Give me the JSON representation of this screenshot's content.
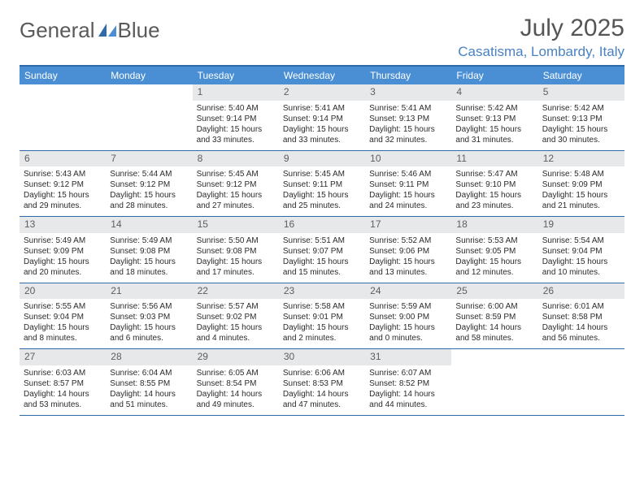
{
  "brand": {
    "name_a": "General",
    "name_b": "Blue"
  },
  "colors": {
    "brand_blue": "#2f6bab",
    "header_blue": "#4a8fd4",
    "text": "#333333",
    "muted": "#5a5a5a",
    "daynum_bg": "#e6e8ea",
    "location": "#4a82c3"
  },
  "title": "July 2025",
  "location": "Casatisma, Lombardy, Italy",
  "weekdays": [
    "Sunday",
    "Monday",
    "Tuesday",
    "Wednesday",
    "Thursday",
    "Friday",
    "Saturday"
  ],
  "weeks": [
    [
      null,
      null,
      {
        "n": "1",
        "sr": "5:40 AM",
        "ss": "9:14 PM",
        "d": "15 hours and 33 minutes."
      },
      {
        "n": "2",
        "sr": "5:41 AM",
        "ss": "9:14 PM",
        "d": "15 hours and 33 minutes."
      },
      {
        "n": "3",
        "sr": "5:41 AM",
        "ss": "9:13 PM",
        "d": "15 hours and 32 minutes."
      },
      {
        "n": "4",
        "sr": "5:42 AM",
        "ss": "9:13 PM",
        "d": "15 hours and 31 minutes."
      },
      {
        "n": "5",
        "sr": "5:42 AM",
        "ss": "9:13 PM",
        "d": "15 hours and 30 minutes."
      }
    ],
    [
      {
        "n": "6",
        "sr": "5:43 AM",
        "ss": "9:12 PM",
        "d": "15 hours and 29 minutes."
      },
      {
        "n": "7",
        "sr": "5:44 AM",
        "ss": "9:12 PM",
        "d": "15 hours and 28 minutes."
      },
      {
        "n": "8",
        "sr": "5:45 AM",
        "ss": "9:12 PM",
        "d": "15 hours and 27 minutes."
      },
      {
        "n": "9",
        "sr": "5:45 AM",
        "ss": "9:11 PM",
        "d": "15 hours and 25 minutes."
      },
      {
        "n": "10",
        "sr": "5:46 AM",
        "ss": "9:11 PM",
        "d": "15 hours and 24 minutes."
      },
      {
        "n": "11",
        "sr": "5:47 AM",
        "ss": "9:10 PM",
        "d": "15 hours and 23 minutes."
      },
      {
        "n": "12",
        "sr": "5:48 AM",
        "ss": "9:09 PM",
        "d": "15 hours and 21 minutes."
      }
    ],
    [
      {
        "n": "13",
        "sr": "5:49 AM",
        "ss": "9:09 PM",
        "d": "15 hours and 20 minutes."
      },
      {
        "n": "14",
        "sr": "5:49 AM",
        "ss": "9:08 PM",
        "d": "15 hours and 18 minutes."
      },
      {
        "n": "15",
        "sr": "5:50 AM",
        "ss": "9:08 PM",
        "d": "15 hours and 17 minutes."
      },
      {
        "n": "16",
        "sr": "5:51 AM",
        "ss": "9:07 PM",
        "d": "15 hours and 15 minutes."
      },
      {
        "n": "17",
        "sr": "5:52 AM",
        "ss": "9:06 PM",
        "d": "15 hours and 13 minutes."
      },
      {
        "n": "18",
        "sr": "5:53 AM",
        "ss": "9:05 PM",
        "d": "15 hours and 12 minutes."
      },
      {
        "n": "19",
        "sr": "5:54 AM",
        "ss": "9:04 PM",
        "d": "15 hours and 10 minutes."
      }
    ],
    [
      {
        "n": "20",
        "sr": "5:55 AM",
        "ss": "9:04 PM",
        "d": "15 hours and 8 minutes."
      },
      {
        "n": "21",
        "sr": "5:56 AM",
        "ss": "9:03 PM",
        "d": "15 hours and 6 minutes."
      },
      {
        "n": "22",
        "sr": "5:57 AM",
        "ss": "9:02 PM",
        "d": "15 hours and 4 minutes."
      },
      {
        "n": "23",
        "sr": "5:58 AM",
        "ss": "9:01 PM",
        "d": "15 hours and 2 minutes."
      },
      {
        "n": "24",
        "sr": "5:59 AM",
        "ss": "9:00 PM",
        "d": "15 hours and 0 minutes."
      },
      {
        "n": "25",
        "sr": "6:00 AM",
        "ss": "8:59 PM",
        "d": "14 hours and 58 minutes."
      },
      {
        "n": "26",
        "sr": "6:01 AM",
        "ss": "8:58 PM",
        "d": "14 hours and 56 minutes."
      }
    ],
    [
      {
        "n": "27",
        "sr": "6:03 AM",
        "ss": "8:57 PM",
        "d": "14 hours and 53 minutes."
      },
      {
        "n": "28",
        "sr": "6:04 AM",
        "ss": "8:55 PM",
        "d": "14 hours and 51 minutes."
      },
      {
        "n": "29",
        "sr": "6:05 AM",
        "ss": "8:54 PM",
        "d": "14 hours and 49 minutes."
      },
      {
        "n": "30",
        "sr": "6:06 AM",
        "ss": "8:53 PM",
        "d": "14 hours and 47 minutes."
      },
      {
        "n": "31",
        "sr": "6:07 AM",
        "ss": "8:52 PM",
        "d": "14 hours and 44 minutes."
      },
      null,
      null
    ]
  ],
  "labels": {
    "sunrise": "Sunrise:",
    "sunset": "Sunset:",
    "daylight": "Daylight:"
  }
}
